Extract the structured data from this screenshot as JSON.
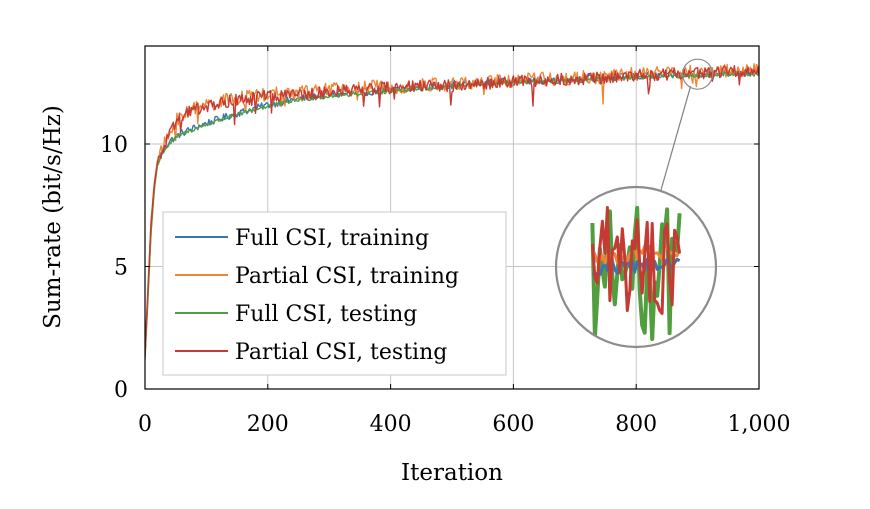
{
  "chart_data": {
    "type": "line",
    "xlabel": "Iteration",
    "ylabel": "Sum-rate (bit/s/Hz)",
    "xlim": [
      0,
      1000
    ],
    "ylim": [
      0,
      14
    ],
    "x_ticks": [
      "0",
      "200",
      "400",
      "600",
      "800",
      "1,000"
    ],
    "y_ticks": [
      "0",
      "5",
      "10"
    ],
    "grid": true,
    "legend_position": "center-left",
    "inset": {
      "type": "magnifier",
      "center": [
        900,
        12.85
      ]
    },
    "series": [
      {
        "name": "Full CSI, training",
        "color": "#3b75af",
        "x": [
          0,
          5,
          10,
          15,
          20,
          30,
          40,
          50,
          60,
          80,
          100,
          150,
          200,
          250,
          300,
          350,
          400,
          450,
          500,
          550,
          600,
          650,
          700,
          750,
          800,
          850,
          900,
          950,
          1000
        ],
        "y": [
          1.3,
          4.0,
          6.5,
          8.2,
          9.2,
          9.8,
          10.1,
          10.3,
          10.45,
          10.65,
          10.85,
          11.25,
          11.6,
          11.85,
          12.0,
          12.1,
          12.2,
          12.3,
          12.4,
          12.5,
          12.55,
          12.6,
          12.65,
          12.7,
          12.75,
          12.8,
          12.85,
          12.9,
          12.9
        ],
        "noise": 0.15
      },
      {
        "name": "Partial CSI, training",
        "color": "#ef8636",
        "x": [
          0,
          5,
          10,
          15,
          20,
          30,
          40,
          50,
          60,
          80,
          100,
          150,
          200,
          250,
          300,
          350,
          400,
          450,
          500,
          550,
          600,
          650,
          700,
          750,
          800,
          850,
          900,
          950,
          1000
        ],
        "y": [
          1.5,
          4.3,
          6.9,
          8.4,
          9.3,
          9.9,
          10.4,
          10.9,
          11.2,
          11.45,
          11.6,
          11.85,
          12.0,
          12.1,
          12.2,
          12.3,
          12.35,
          12.4,
          12.45,
          12.5,
          12.6,
          12.65,
          12.7,
          12.75,
          12.85,
          12.9,
          12.95,
          13.0,
          13.05
        ],
        "noise": 0.3
      },
      {
        "name": "Full CSI, testing",
        "color": "#519e3e",
        "x": [
          0,
          5,
          10,
          15,
          20,
          30,
          40,
          50,
          60,
          80,
          100,
          150,
          200,
          250,
          300,
          350,
          400,
          450,
          500,
          550,
          600,
          650,
          700,
          750,
          800,
          850,
          900,
          950,
          1000
        ],
        "y": [
          1.2,
          3.8,
          6.4,
          8.1,
          9.1,
          9.7,
          10.0,
          10.25,
          10.4,
          10.6,
          10.8,
          11.2,
          11.55,
          11.8,
          11.95,
          12.05,
          12.15,
          12.25,
          12.35,
          12.45,
          12.5,
          12.55,
          12.6,
          12.65,
          12.7,
          12.75,
          12.8,
          12.85,
          12.85
        ],
        "noise": 0.08
      },
      {
        "name": "Partial CSI, testing",
        "color": "#c53a32",
        "x": [
          0,
          5,
          10,
          15,
          20,
          30,
          40,
          50,
          60,
          80,
          100,
          150,
          200,
          250,
          300,
          350,
          400,
          450,
          500,
          550,
          600,
          650,
          700,
          750,
          800,
          850,
          900,
          950,
          1000
        ],
        "y": [
          1.4,
          4.2,
          6.8,
          8.3,
          9.2,
          9.8,
          10.35,
          10.85,
          11.15,
          11.4,
          11.55,
          11.8,
          11.95,
          12.05,
          12.15,
          12.25,
          12.3,
          12.35,
          12.4,
          12.45,
          12.55,
          12.6,
          12.65,
          12.7,
          12.8,
          12.85,
          12.9,
          12.95,
          13.0
        ],
        "noise": 0.25
      }
    ]
  }
}
